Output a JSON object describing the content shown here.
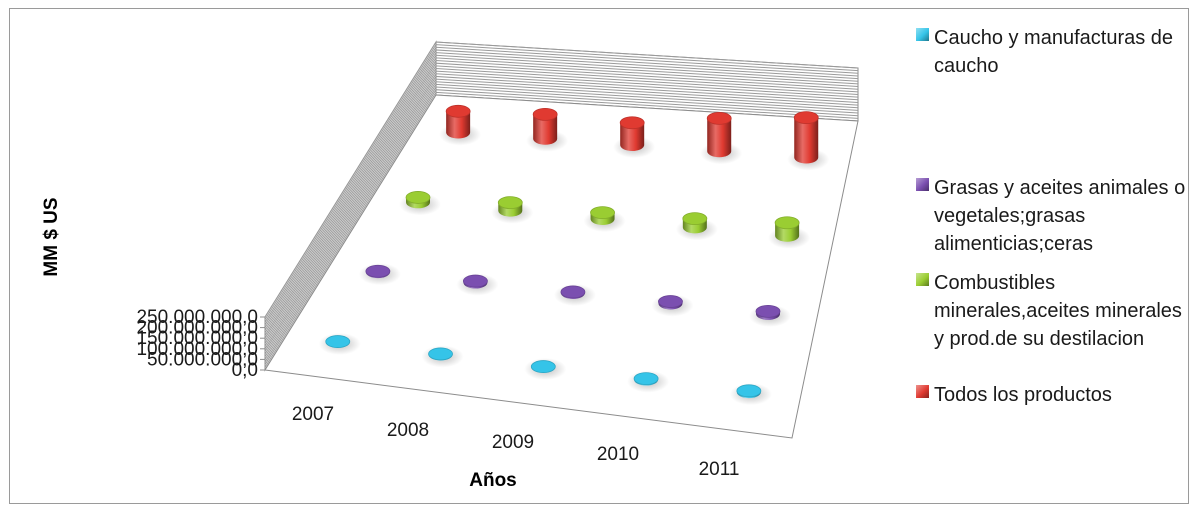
{
  "chart_data": {
    "type": "bar",
    "style": "3d-cylinder",
    "categories": [
      "2007",
      "2008",
      "2009",
      "2010",
      "2011"
    ],
    "ylabel": "MM $ US",
    "xlabel": "Años",
    "ylim": [
      0,
      250000000
    ],
    "yticks": [
      "0,0",
      "50.000.000,0",
      "100.000.000,0",
      "150.000.000,0",
      "200.000.000,0",
      "250.000.000,0"
    ],
    "grid": true,
    "legend_position": "right",
    "series": [
      {
        "name": "Caucho y manufacturas de caucho",
        "color": "#35c4e8",
        "values": [
          1500000,
          2500000,
          2000000,
          4500000,
          6000000
        ]
      },
      {
        "name": "Grasas y aceites animales o vegetales;grasas alimenticias;ceras",
        "color": "#7b4fb0",
        "values": [
          4000000,
          7000000,
          5000000,
          9000000,
          12000000
        ]
      },
      {
        "name": "Combustibles minerales,aceites minerales y prod.de su destilacion",
        "color": "#9acd32",
        "values": [
          23000000,
          38000000,
          30000000,
          41000000,
          61000000
        ]
      },
      {
        "name": "Todos los productos",
        "color": "#e03a31",
        "values": [
          100000000,
          115000000,
          105000000,
          155000000,
          188000000
        ]
      }
    ]
  }
}
